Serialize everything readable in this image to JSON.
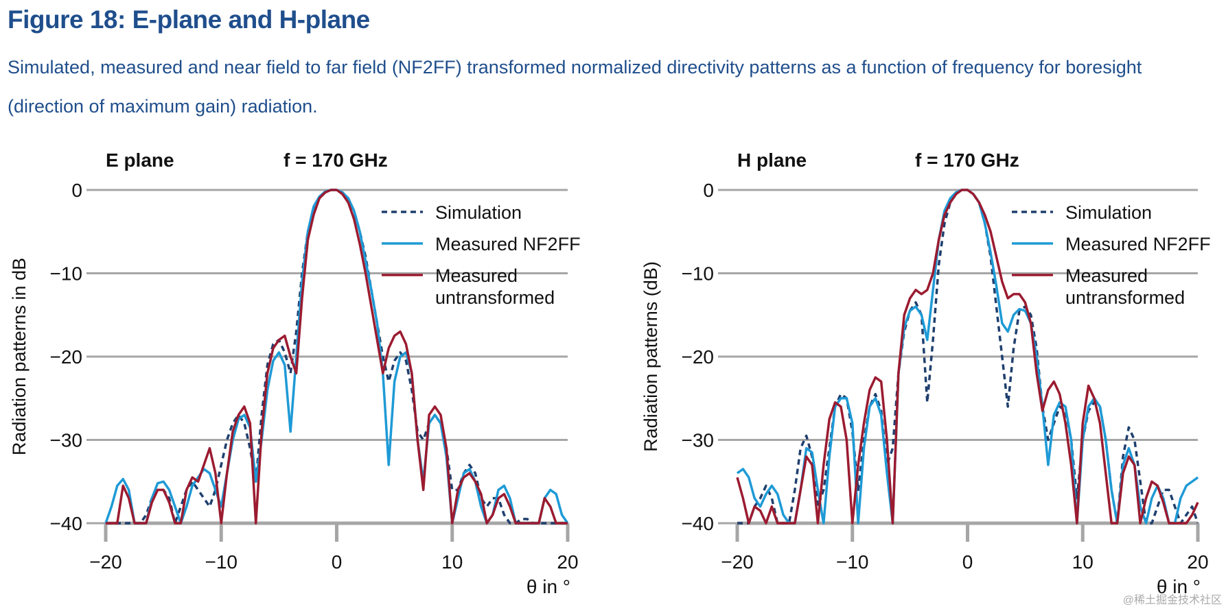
{
  "figure": {
    "title": "Figure 18: E-plane and H-plane",
    "subtitle": "Simulated, measured and near field to far field (NF2FF) transformed normalized directivity patterns as a function of frequency for boresight (direction of maximum gain) radiation.",
    "watermark": "@稀土掘金技术社区"
  },
  "chart_data": [
    {
      "type": "line",
      "title": "E plane",
      "annotation": "f = 170 GHz",
      "ylabel": "Radiation patterns in dB",
      "xlabel": "θ in °",
      "xlim": [
        -20,
        20
      ],
      "ylim": [
        -40,
        0
      ],
      "xticks": [
        {
          "value": -20,
          "label": "−20"
        },
        {
          "value": -10,
          "label": "−10"
        },
        0,
        10,
        20
      ],
      "yticks": [
        0,
        {
          "value": -10,
          "label": "−10"
        },
        {
          "value": -20,
          "label": "−20"
        },
        {
          "value": -30,
          "label": "−30"
        },
        {
          "value": -40,
          "label": "−40"
        }
      ],
      "grid": true,
      "legend": "upper right",
      "x": [
        -20,
        -19.5,
        -19,
        -18.5,
        -18,
        -17.5,
        -17,
        -16.5,
        -16,
        -15.5,
        -15,
        -14.5,
        -14,
        -13.5,
        -13,
        -12.5,
        -12,
        -11.5,
        -11,
        -10.5,
        -10,
        -9.5,
        -9,
        -8.5,
        -8,
        -7.5,
        -7,
        -6.5,
        -6,
        -5.5,
        -5,
        -4.5,
        -4,
        -3.5,
        -3,
        -2.5,
        -2,
        -1.5,
        -1,
        -0.5,
        0,
        0.5,
        1,
        1.5,
        2,
        2.5,
        3,
        3.5,
        4,
        4.5,
        5,
        5.5,
        6,
        6.5,
        7,
        7.5,
        8,
        8.5,
        9,
        9.5,
        10,
        10.5,
        11,
        11.5,
        12,
        12.5,
        13,
        13.5,
        14,
        14.5,
        15,
        15.5,
        16,
        16.5,
        17,
        17.5,
        18,
        18.5,
        19,
        19.5,
        20
      ],
      "series": [
        {
          "name": "Simulation",
          "color": "#1f3f6e",
          "linestyle": "dashed",
          "values": [
            -40,
            -40,
            -40,
            -40,
            -40,
            -40,
            -40,
            -39,
            -37,
            -36,
            -36,
            -37,
            -40,
            -38,
            -36,
            -35,
            -36,
            -37,
            -38,
            -36,
            -33,
            -30,
            -28,
            -27,
            -28,
            -31,
            -35,
            -27,
            -21,
            -18.5,
            -18,
            -19.5,
            -22,
            -17,
            -10,
            -5,
            -2.5,
            -1,
            -0.3,
            0,
            0,
            -0.3,
            -1,
            -2.5,
            -5,
            -8,
            -12,
            -16,
            -20,
            -23,
            -20.5,
            -19.5,
            -20.5,
            -24,
            -29,
            -30,
            -28,
            -27,
            -28,
            -31,
            -36,
            -36,
            -34,
            -33,
            -34,
            -37,
            -38,
            -37,
            -37,
            -39,
            -40,
            -40,
            -39.5,
            -39.5,
            -40,
            -40,
            -40,
            -40,
            -40,
            -40,
            -40
          ]
        },
        {
          "name": "Measured NF2FF",
          "color": "#1e9ad6",
          "linestyle": "solid",
          "values": [
            -40,
            -38,
            -35.5,
            -34.7,
            -36,
            -40,
            -40,
            -40,
            -37,
            -35.2,
            -35,
            -36,
            -38,
            -40,
            -38,
            -35.5,
            -34.5,
            -33.5,
            -34,
            -36,
            -38,
            -34,
            -30,
            -27.5,
            -27,
            -28.5,
            -35,
            -30,
            -24,
            -20.5,
            -19.5,
            -21,
            -29,
            -20,
            -11,
            -5,
            -2,
            -0.8,
            -0.2,
            0,
            0,
            -0.3,
            -1,
            -2.5,
            -5,
            -8.5,
            -12,
            -16,
            -22,
            -33,
            -23,
            -20,
            -19.5,
            -22,
            -30,
            -35,
            -28,
            -27,
            -28,
            -32,
            -40,
            -37,
            -34,
            -33.5,
            -35,
            -38,
            -40,
            -39,
            -36,
            -35.5,
            -37,
            -40,
            -40,
            -40,
            -40,
            -40,
            -37,
            -36,
            -36.5,
            -39,
            -40
          ]
        },
        {
          "name": "Measured untransformed",
          "color": "#9b1b30",
          "linestyle": "solid",
          "values": [
            -40,
            -40,
            -40,
            -35.5,
            -37,
            -40,
            -40,
            -40,
            -37.5,
            -36,
            -36,
            -37.5,
            -40,
            -40,
            -36,
            -34.5,
            -35,
            -33,
            -31,
            -34,
            -40,
            -34,
            -29,
            -27,
            -26,
            -28,
            -40,
            -29,
            -22,
            -19,
            -18,
            -17.5,
            -20,
            -22,
            -13,
            -6,
            -3,
            -1,
            -0.3,
            0,
            0,
            -0.5,
            -1.5,
            -3.5,
            -6.5,
            -10,
            -14,
            -18,
            -22,
            -19,
            -17.5,
            -17,
            -18.5,
            -22,
            -30,
            -36,
            -27,
            -26,
            -27,
            -31,
            -40,
            -36,
            -34.5,
            -34,
            -35,
            -36.5,
            -40,
            -39,
            -37,
            -36.5,
            -38,
            -40,
            -40,
            -40,
            -40,
            -40,
            -37,
            -38,
            -40,
            -40,
            -40
          ]
        }
      ]
    },
    {
      "type": "line",
      "title": "H plane",
      "annotation": "f = 170 GHz",
      "ylabel": "Radiation patterns (dB)",
      "xlabel": "θ in °",
      "xlim": [
        -20,
        20
      ],
      "ylim": [
        -40,
        0
      ],
      "xticks": [
        {
          "value": -20,
          "label": "−20"
        },
        {
          "value": -10,
          "label": "−10"
        },
        0,
        10,
        20
      ],
      "yticks": [
        0,
        {
          "value": -10,
          "label": "−10"
        },
        {
          "value": -20,
          "label": "−20"
        },
        {
          "value": -30,
          "label": "−30"
        },
        {
          "value": -40,
          "label": "−40"
        }
      ],
      "grid": true,
      "legend": "upper right",
      "x": [
        -20,
        -19.5,
        -19,
        -18.5,
        -18,
        -17.5,
        -17,
        -16.5,
        -16,
        -15.5,
        -15,
        -14.5,
        -14,
        -13.5,
        -13,
        -12.5,
        -12,
        -11.5,
        -11,
        -10.5,
        -10,
        -9.5,
        -9,
        -8.5,
        -8,
        -7.5,
        -7,
        -6.5,
        -6,
        -5.5,
        -5,
        -4.5,
        -4,
        -3.5,
        -3,
        -2.5,
        -2,
        -1.5,
        -1,
        -0.5,
        0,
        0.5,
        1,
        1.5,
        2,
        2.5,
        3,
        3.5,
        4,
        4.5,
        5,
        5.5,
        6,
        6.5,
        7,
        7.5,
        8,
        8.5,
        9,
        9.5,
        10,
        10.5,
        11,
        11.5,
        12,
        12.5,
        13,
        13.5,
        14,
        14.5,
        15,
        15.5,
        16,
        16.5,
        17,
        17.5,
        18,
        18.5,
        19,
        19.5,
        20
      ],
      "series": [
        {
          "name": "Simulation",
          "color": "#1f3f6e",
          "linestyle": "dashed",
          "values": [
            -40,
            -40,
            -40,
            -38,
            -37,
            -35.5,
            -37,
            -40,
            -40,
            -40,
            -36,
            -31,
            -29.5,
            -32,
            -38,
            -36,
            -31,
            -26,
            -24.5,
            -25,
            -29,
            -36,
            -30,
            -26,
            -24.5,
            -26.5,
            -33,
            -31,
            -22,
            -17,
            -14.5,
            -13.5,
            -15,
            -25.5,
            -18,
            -9,
            -4,
            -1.5,
            -0.3,
            0,
            0,
            -0.5,
            -1.5,
            -4,
            -8,
            -14,
            -20,
            -26,
            -19,
            -14.5,
            -14,
            -15,
            -19,
            -26,
            -30,
            -28,
            -26,
            -26.5,
            -30,
            -37,
            -30,
            -26.5,
            -25.5,
            -26,
            -30,
            -36,
            -40,
            -32,
            -28.5,
            -30,
            -35,
            -40,
            -40,
            -38,
            -36,
            -36,
            -38,
            -40,
            -39,
            -38,
            -40
          ]
        },
        {
          "name": "Measured NF2FF",
          "color": "#1e9ad6",
          "linestyle": "solid",
          "values": [
            -34,
            -33.5,
            -34.5,
            -37,
            -38,
            -36.5,
            -35.5,
            -36.5,
            -39,
            -40,
            -40,
            -36,
            -31,
            -31.5,
            -36,
            -40,
            -32,
            -26,
            -25,
            -25,
            -28,
            -40,
            -31,
            -26,
            -25,
            -27,
            -34,
            -40,
            -22,
            -16.5,
            -14.5,
            -14,
            -15,
            -18,
            -12,
            -6,
            -2.5,
            -1,
            -0.3,
            0,
            0,
            -0.5,
            -1.5,
            -4,
            -7.5,
            -11.5,
            -16,
            -17,
            -15,
            -14.3,
            -14.5,
            -16,
            -20,
            -26,
            -33,
            -27,
            -25.5,
            -26,
            -30,
            -40,
            -30,
            -26,
            -25,
            -26,
            -30,
            -36,
            -40,
            -33,
            -31,
            -33,
            -38,
            -40,
            -37,
            -35.5,
            -37,
            -40,
            -40,
            -37,
            -35.5,
            -35,
            -34.5
          ]
        },
        {
          "name": "Measured untransformed",
          "color": "#9b1b30",
          "linestyle": "solid",
          "values": [
            -34.5,
            -37,
            -40,
            -38,
            -38.5,
            -40,
            -38,
            -40,
            -40,
            -40,
            -40,
            -36,
            -32,
            -33,
            -40,
            -33,
            -27.5,
            -25.5,
            -26,
            -30,
            -40,
            -33,
            -28,
            -24,
            -22.5,
            -23,
            -30,
            -40,
            -22,
            -15,
            -13,
            -12,
            -12.5,
            -12,
            -10,
            -6,
            -3,
            -1.5,
            -0.5,
            0,
            0,
            -0.5,
            -1.5,
            -3,
            -5,
            -8,
            -11,
            -13,
            -12.5,
            -12.5,
            -13.5,
            -16,
            -22,
            -26.5,
            -24,
            -23,
            -24.5,
            -28,
            -33,
            -40,
            -28,
            -23.5,
            -25,
            -28,
            -34,
            -40,
            -40,
            -34,
            -32,
            -33,
            -40,
            -37,
            -35,
            -35.5,
            -37.5,
            -40,
            -40,
            -40,
            -40,
            -39,
            -37.5
          ]
        }
      ]
    }
  ]
}
